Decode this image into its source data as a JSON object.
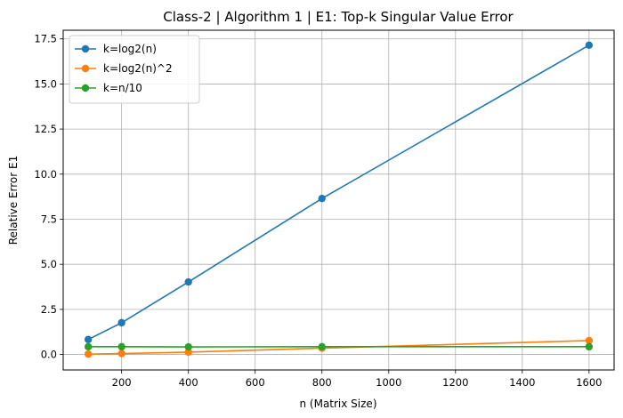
{
  "chart_data": {
    "type": "line",
    "title": "Class-2 | Algorithm 1 | E1: Top-k Singular Value Error",
    "xlabel": "n (Matrix Size)",
    "ylabel": "Relative Error E1",
    "x": [
      100,
      200,
      400,
      800,
      1600
    ],
    "xlim": [
      25,
      1675
    ],
    "ylim": [
      -0.86,
      17.98
    ],
    "xticks": [
      "200",
      "400",
      "600",
      "800",
      "1000",
      "1200",
      "1400",
      "1600"
    ],
    "yticks": [
      "0.0",
      "2.5",
      "5.0",
      "7.5",
      "10.0",
      "12.5",
      "15.0",
      "17.5"
    ],
    "grid": true,
    "legend_position": "top-left",
    "series": [
      {
        "name": "k=log2(n)",
        "color": "#1f77b4",
        "values": [
          0.83,
          1.76,
          4.02,
          8.65,
          17.15
        ]
      },
      {
        "name": "k=log2(n)^2",
        "color": "#ff7f0e",
        "values": [
          0.02,
          0.05,
          0.13,
          0.35,
          0.77
        ]
      },
      {
        "name": "k=n/10",
        "color": "#2ca02c",
        "values": [
          0.43,
          0.43,
          0.42,
          0.43,
          0.43
        ]
      }
    ]
  }
}
